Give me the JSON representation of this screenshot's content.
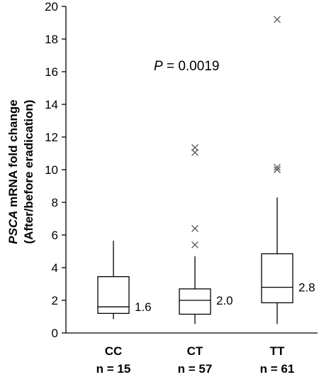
{
  "chart_data": {
    "type": "box",
    "ylabel_line1_italic": "PSCA",
    "ylabel_line1_rest": " mRNA fold change",
    "ylabel_line2": "(After/before eradication)",
    "ylim": [
      0,
      20
    ],
    "yticks": [
      "0",
      "2",
      "4",
      "6",
      "8",
      "10",
      "12",
      "14",
      "16",
      "18",
      "20"
    ],
    "annotation_p_symbol": "P",
    "annotation_p_value": " = 0.0019",
    "groups": [
      {
        "category": "CC",
        "n_label": "n = 15",
        "median_label": "1.6",
        "whisker_low": 0.85,
        "q1": 1.2,
        "median": 1.6,
        "q3": 3.45,
        "whisker_high": 5.65,
        "outliers": []
      },
      {
        "category": "CT",
        "n_label": "n = 57",
        "median_label": "2.0",
        "whisker_low": 0.55,
        "q1": 1.15,
        "median": 2.0,
        "q3": 2.7,
        "whisker_high": 4.7,
        "outliers": [
          5.4,
          6.4,
          11.05,
          11.35
        ]
      },
      {
        "category": "TT",
        "n_label": "n = 61",
        "median_label": "2.8",
        "whisker_low": 0.55,
        "q1": 1.85,
        "median": 2.8,
        "q3": 4.85,
        "whisker_high": 8.3,
        "outliers": [
          10.0,
          10.15,
          19.2
        ]
      }
    ]
  }
}
